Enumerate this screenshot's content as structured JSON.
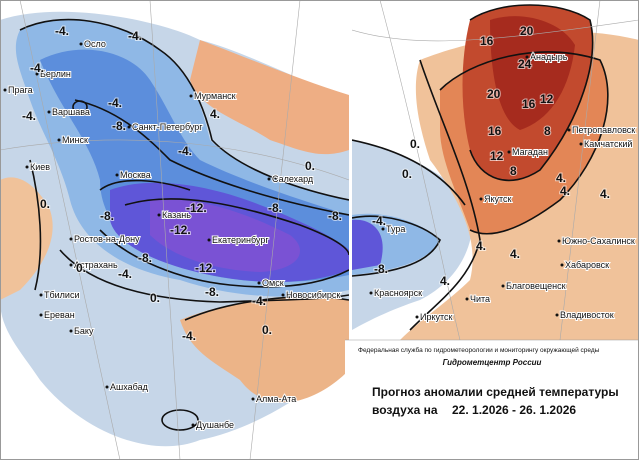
{
  "caption": {
    "agency": "Федеральная служба по гидрометеорологии и мониторингу окружающей среды",
    "center": "Гидрометцентр России",
    "title": "Прогноз аномалии средней температуры",
    "subtitle": "воздуха на",
    "period": "22. 1.2026 - 26. 1.2026"
  },
  "cities": [
    "Осло",
    "Берлин",
    "Прага",
    "Варшава",
    "Минск",
    "Киев",
    "Москва",
    "Санкт-Петербург",
    "Мурманск",
    "Салехард",
    "Казань",
    "Екатеринбург",
    "Ростов-на-Дону",
    "Астрахань",
    "Омск",
    "Новосибирск",
    "Тбилиси",
    "Ереван",
    "Баку",
    "Ашхабад",
    "Душанбе",
    "Алма-Ата",
    "Тура",
    "Красноярск",
    "Иркутск",
    "Чита",
    "Якутск",
    "Анадырь",
    "Магадан",
    "Петропавловск",
    "Камчатский",
    "Благовещенск",
    "Хабаровск",
    "Южно-Сахалинск",
    "Владивосток"
  ],
  "contour_labels": [
    "-4.",
    "-4.",
    "-4.",
    "-4.",
    "-8.",
    "-4.",
    "-4.",
    "0.",
    "-8.",
    "-8.",
    "-12.",
    "-12.",
    "-12.",
    "-8.",
    "-8.",
    "-8.",
    "-4.",
    "0.",
    "0.",
    "-4.",
    "-4.",
    "0.",
    "4.",
    "0.",
    "0.",
    "-4.",
    "-8.",
    "16",
    "20",
    "24",
    "16",
    "20",
    "12",
    "16",
    "8",
    "12",
    "8",
    "4.",
    "4.",
    "4.",
    "0.",
    "4.",
    "4.",
    "4."
  ]
}
